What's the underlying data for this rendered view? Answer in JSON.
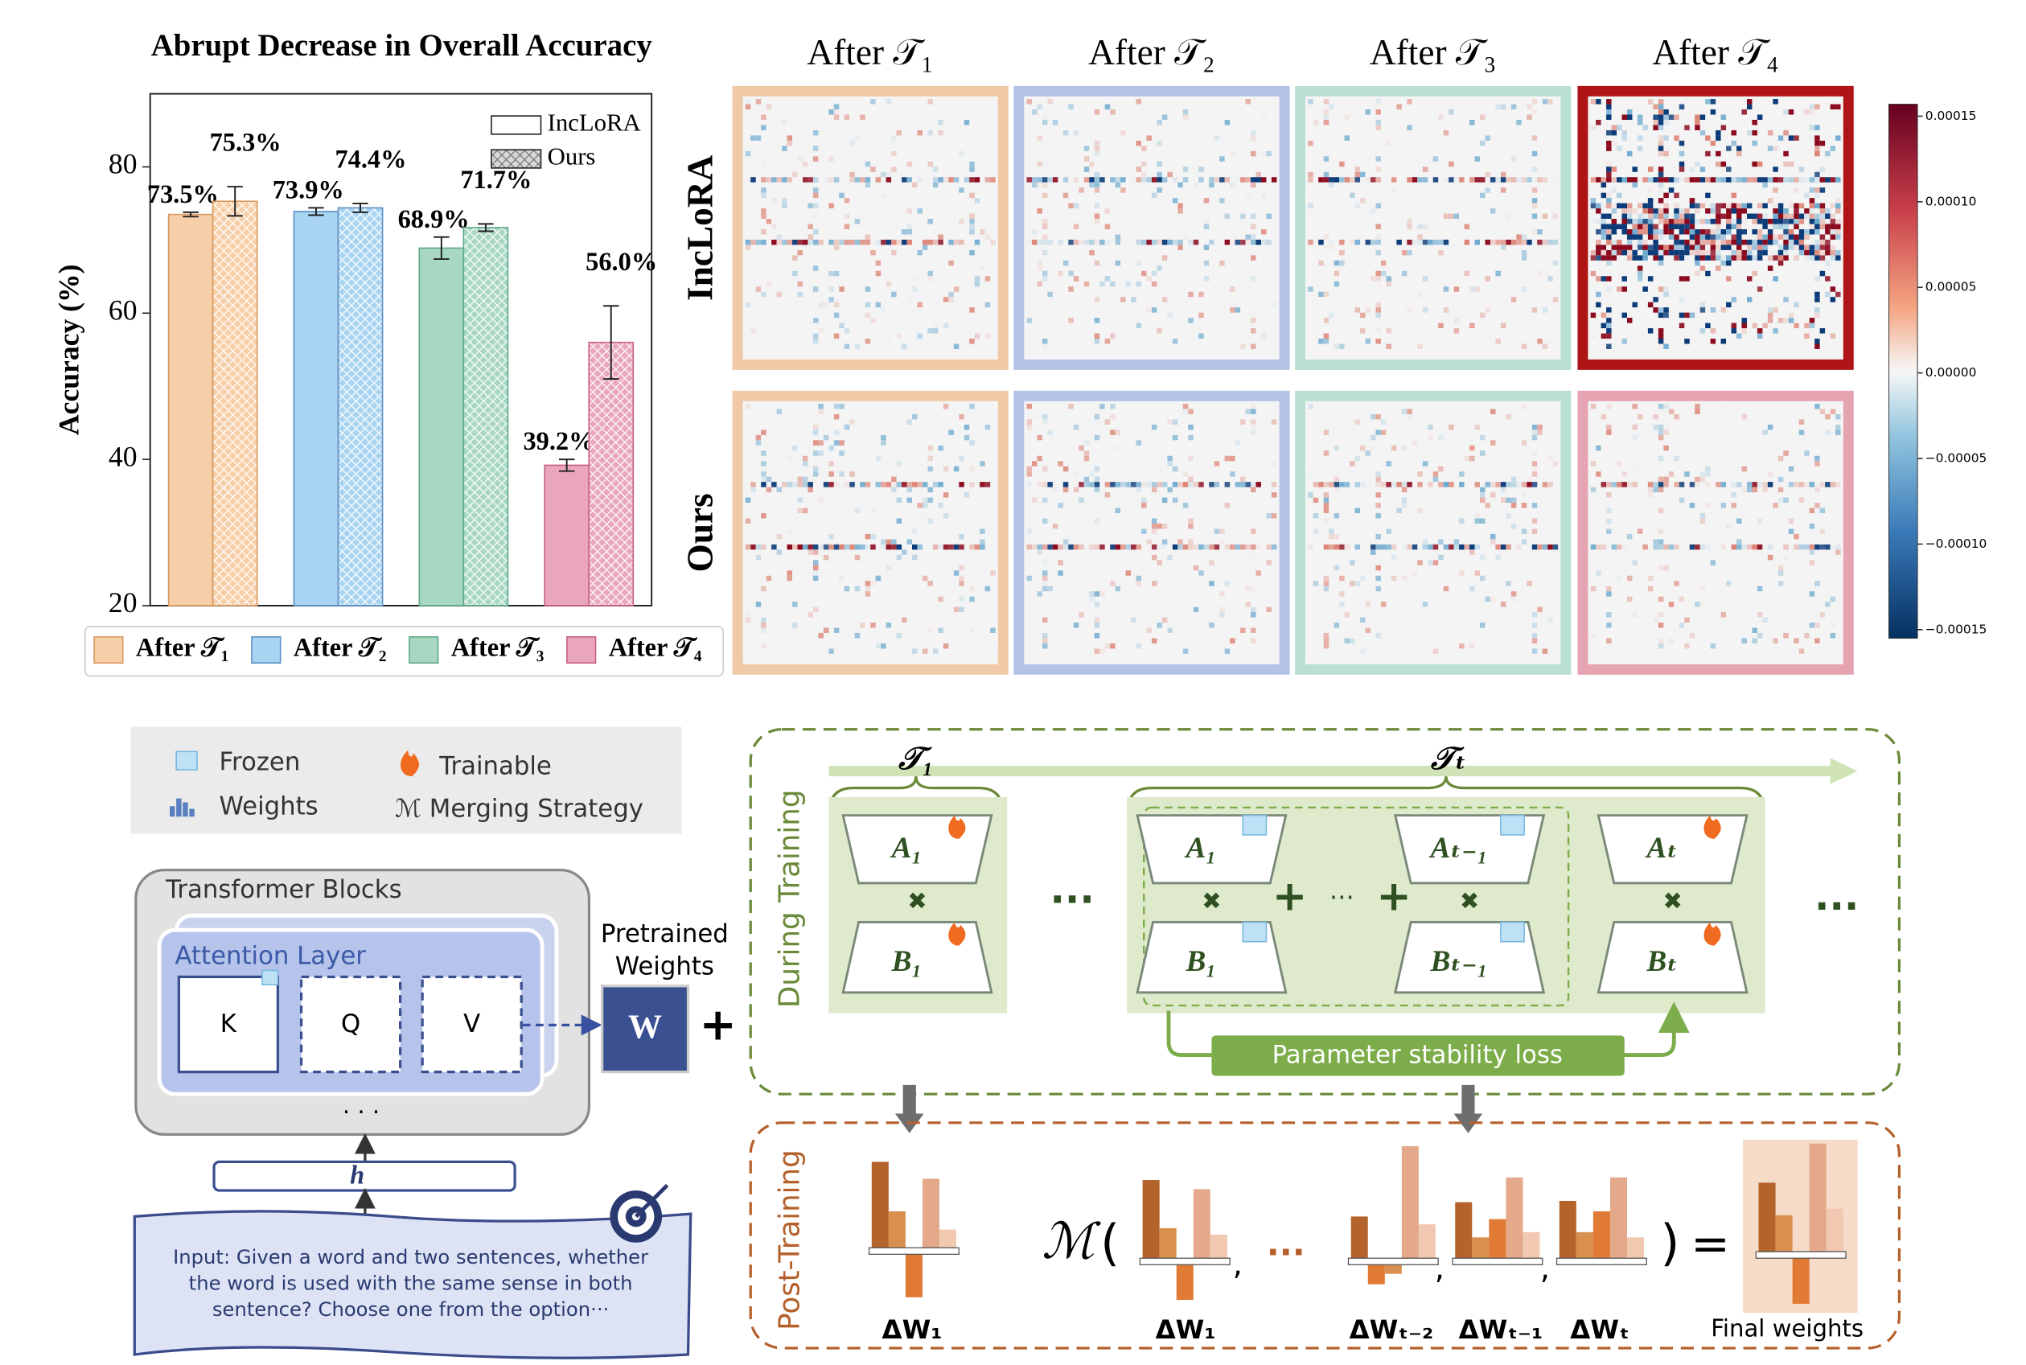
{
  "chart_data": {
    "type": "bar",
    "title": "Abrupt Decrease in Overall Accuracy",
    "ylabel": "Accuracy (%)",
    "categories": [
      "After 𝒯₁",
      "After 𝒯₂",
      "After 𝒯₃",
      "After 𝒯₄"
    ],
    "category_colors": [
      "#f6cfa8",
      "#a8d4f2",
      "#a8d8c2",
      "#eaa6bd"
    ],
    "series": [
      {
        "name": "IncLoRA",
        "pattern": "none",
        "values": [
          73.5,
          73.9,
          68.9,
          39.2
        ],
        "errors": [
          0.3,
          0.5,
          1.5,
          0.8
        ],
        "value_labels": [
          "73.5%",
          "73.9%",
          "68.9%",
          "39.2%"
        ]
      },
      {
        "name": "Ours",
        "pattern": "crosshatch",
        "values": [
          75.3,
          74.4,
          71.7,
          56.0
        ],
        "errors": [
          2.0,
          0.6,
          0.5,
          5.0
        ],
        "value_labels": [
          "75.3%",
          "74.4%",
          "71.7%",
          "56.0%"
        ]
      }
    ],
    "ylim": [
      20,
      90
    ],
    "yticks": [
      20,
      40,
      60,
      80
    ],
    "legend": "upper right"
  },
  "heatmaps": {
    "columns": [
      "After 𝒯₁",
      "After 𝒯₂",
      "After 𝒯₃",
      "After 𝒯₄"
    ],
    "rows": [
      "IncLoRA",
      "Ours"
    ],
    "border_colors": [
      "#f0c9a6",
      "#b4c2e6",
      "#b9e0d2",
      "#e6a3b2"
    ],
    "collapsed_border": "#b01515",
    "clim": [
      -0.000155,
      0.000157
    ],
    "colorbar_ticks": [
      0.00015,
      {
        "value": 0.0001,
        "label": "0.00010"
      },
      5e-05,
      {
        "value": 0,
        "label": "0.00000"
      },
      {
        "value": -5e-05,
        "label": "−0.00005"
      },
      {
        "value": -0.0001,
        "label": "−0.00010"
      },
      {
        "value": -0.00015,
        "label": "−0.00015"
      }
    ]
  },
  "diagram": {
    "legend": {
      "frozen": "Frozen",
      "weights": "Weights",
      "trainable": "Trainable",
      "merging": "ℳ Merging Strategy"
    },
    "transformer": {
      "title": "Transformer Blocks",
      "attention": "Attention Layer",
      "keys": [
        "K",
        "Q",
        "V"
      ],
      "ellipsis": "· · ·",
      "pretrained": [
        "Pretrained",
        "Weights"
      ],
      "weight": "W",
      "plus": "+",
      "hidden": "h",
      "input": [
        "Input: Given a word and two sentences, whether",
        "the word is used with the same sense in both",
        "sentence? Choose one from the option···"
      ]
    },
    "training": {
      "label": "During Training",
      "tasks": [
        "𝒯₁",
        "𝒯ₜ"
      ],
      "modules": [
        {
          "a": "A₁",
          "b": "B₁"
        },
        {
          "a": "A₁",
          "b": "B₁"
        },
        {
          "a": "Aₜ₋₁",
          "b": "Bₜ₋₁"
        },
        {
          "a": "Aₜ",
          "b": "Bₜ"
        }
      ],
      "multiply": "✖",
      "plus": "+",
      "ellipsis": "···",
      "loss": "Parameter stability loss"
    },
    "post_training": {
      "label": "Post-Training",
      "merge": "ℳ",
      "open": "(",
      "close": ")",
      "equals": "=",
      "comma": ",",
      "ellipsis": "···",
      "deltas": [
        "ΔW₁",
        "ΔW₁",
        "ΔWₜ₋₂",
        "ΔWₜ₋₁",
        "ΔWₜ"
      ],
      "final": "Final weights"
    }
  }
}
